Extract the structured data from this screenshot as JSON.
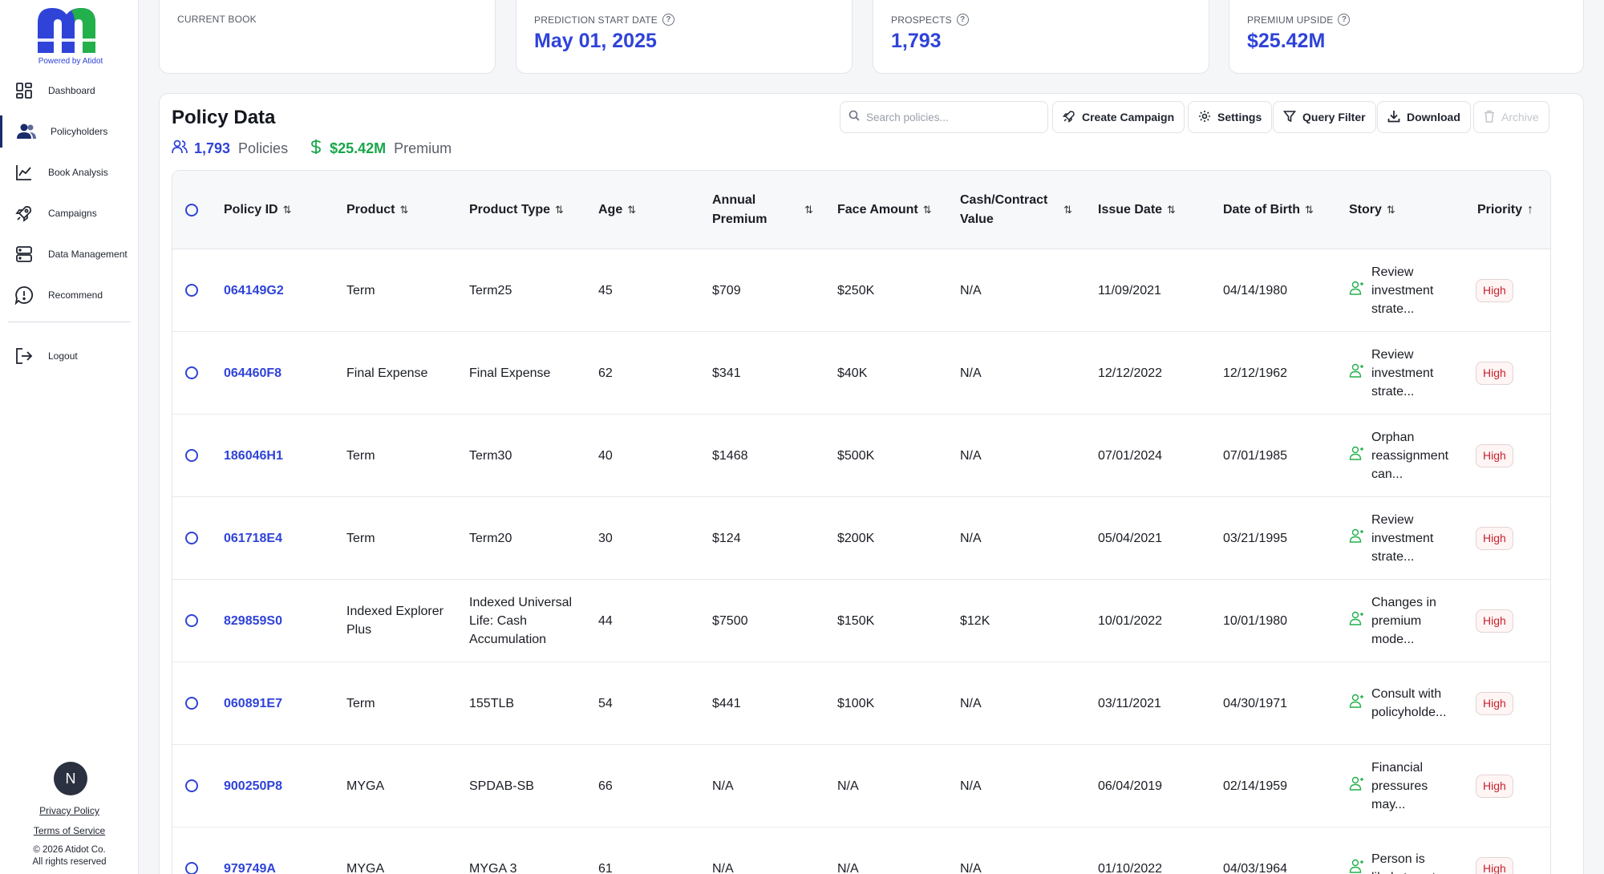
{
  "brand": {
    "powered_by": "Powered by Atidot"
  },
  "nav": [
    {
      "label": "Dashboard",
      "icon": "dashboard-grid-icon"
    },
    {
      "label": "Policyholders",
      "icon": "users-icon"
    },
    {
      "label": "Book Analysis",
      "icon": "chart-icon"
    },
    {
      "label": "Campaigns",
      "icon": "rocket-icon"
    },
    {
      "label": "Data Management",
      "icon": "database-icon"
    },
    {
      "label": "Recommend",
      "icon": "alert-bubble-icon"
    },
    {
      "label": "Logout",
      "icon": "logout-icon"
    }
  ],
  "user": {
    "initial": "N"
  },
  "footer": {
    "privacy": "Privacy Policy",
    "terms": "Terms of Service",
    "copyright": "© 2026 Atidot Co.",
    "rights": "All rights reserved"
  },
  "kpis": [
    {
      "label": "CURRENT BOOK",
      "value": ""
    },
    {
      "label": "PREDICTION START DATE",
      "value": "May 01, 2025"
    },
    {
      "label": "PROSPECTS",
      "value": "1,793"
    },
    {
      "label": "PREMIUM UPSIDE",
      "value": "$25.42M"
    }
  ],
  "panel": {
    "title": "Policy Data",
    "policies_count": "1,793",
    "policies_label": "Policies",
    "premium_value": "$25.42M",
    "premium_label": "Premium",
    "search_placeholder": "Search policies...",
    "buttons": {
      "create_campaign": "Create Campaign",
      "settings": "Settings",
      "query_filter": "Query Filter",
      "download": "Download",
      "archive": "Archive"
    }
  },
  "columns": {
    "policy_id": "Policy ID",
    "product": "Product",
    "product_type": "Product Type",
    "age": "Age",
    "annual_premium_1": "Annual",
    "annual_premium_2": "Premium",
    "face_amount": "Face Amount",
    "cash_value_1": "Cash/Contract",
    "cash_value_2": "Value",
    "issue_date": "Issue Date",
    "date_of_birth": "Date of Birth",
    "story": "Story",
    "priority": "Priority"
  },
  "rows": [
    {
      "policy_id": "064149G2",
      "product": "Term",
      "product_type": "Term25",
      "age": "45",
      "premium": "$709",
      "face": "$250K",
      "cash": "N/A",
      "issue": "11/09/2021",
      "dob": "04/14/1980",
      "story": "Review investment strate...",
      "priority": "High"
    },
    {
      "policy_id": "064460F8",
      "product": "Final Expense",
      "product_type": "Final Expense",
      "age": "62",
      "premium": "$341",
      "face": "$40K",
      "cash": "N/A",
      "issue": "12/12/2022",
      "dob": "12/12/1962",
      "story": "Review investment strate...",
      "priority": "High"
    },
    {
      "policy_id": "186046H1",
      "product": "Term",
      "product_type": "Term30",
      "age": "40",
      "premium": "$1468",
      "face": "$500K",
      "cash": "N/A",
      "issue": "07/01/2024",
      "dob": "07/01/1985",
      "story": "Orphan reassignment can...",
      "priority": "High"
    },
    {
      "policy_id": "061718E4",
      "product": "Term",
      "product_type": "Term20",
      "age": "30",
      "premium": "$124",
      "face": "$200K",
      "cash": "N/A",
      "issue": "05/04/2021",
      "dob": "03/21/1995",
      "story": "Review investment strate...",
      "priority": "High"
    },
    {
      "policy_id": "829859S0",
      "product": "Indexed Explorer Plus",
      "product_type": "Indexed Universal Life: Cash Accumulation",
      "age": "44",
      "premium": "$7500",
      "face": "$150K",
      "cash": "$12K",
      "issue": "10/01/2022",
      "dob": "10/01/1980",
      "story": "Changes in premium mode...",
      "priority": "High"
    },
    {
      "policy_id": "060891E7",
      "product": "Term",
      "product_type": "155TLB",
      "age": "54",
      "premium": "$441",
      "face": "$100K",
      "cash": "N/A",
      "issue": "03/11/2021",
      "dob": "04/30/1971",
      "story": "Consult with policyholde...",
      "priority": "High"
    },
    {
      "policy_id": "900250P8",
      "product": "MYGA",
      "product_type": "SPDAB-SB",
      "age": "66",
      "premium": "N/A",
      "face": "N/A",
      "cash": "N/A",
      "issue": "06/04/2019",
      "dob": "02/14/1959",
      "story": "Financial pressures may...",
      "priority": "High"
    },
    {
      "policy_id": "979749A",
      "product": "MYGA",
      "product_type": "MYGA 3",
      "age": "61",
      "premium": "N/A",
      "face": "N/A",
      "cash": "N/A",
      "issue": "01/10/2022",
      "dob": "04/03/1964",
      "story": "Person is likely to not...",
      "priority": "High"
    }
  ]
}
